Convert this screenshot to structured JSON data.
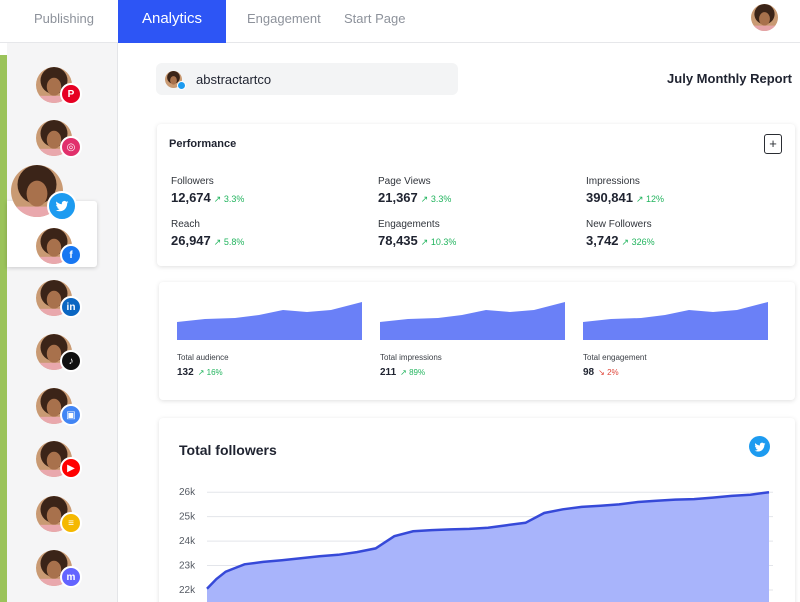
{
  "nav": {
    "tabs": [
      {
        "label": "Publishing"
      },
      {
        "label": "Analytics",
        "active": true
      },
      {
        "label": "Engagement"
      },
      {
        "label": "Start Page"
      }
    ]
  },
  "sidebar": {
    "accounts": [
      {
        "network": "pinterest",
        "icon": "pinterest-icon",
        "color": "#e60023"
      },
      {
        "network": "instagram",
        "icon": "instagram-icon",
        "color": "#e1306c"
      },
      {
        "network": "twitter",
        "icon": "twitter-icon",
        "color": "#1d9bf0",
        "selected": true
      },
      {
        "network": "facebook",
        "icon": "facebook-icon",
        "color": "#1877f2"
      },
      {
        "network": "linkedin",
        "icon": "linkedin-icon",
        "color": "#0a66c2"
      },
      {
        "network": "tiktok",
        "icon": "tiktok-icon",
        "color": "#111111"
      },
      {
        "network": "google-business",
        "icon": "google-business-icon",
        "color": "#4285f4"
      },
      {
        "network": "youtube",
        "icon": "youtube-icon",
        "color": "#ff0000"
      },
      {
        "network": "start-page",
        "icon": "start-page-icon",
        "color": "#f5b800"
      },
      {
        "network": "mastodon",
        "icon": "mastodon-icon",
        "color": "#6364ff"
      }
    ]
  },
  "account": {
    "name": "abstractartco"
  },
  "report": {
    "title": "July Monthly Report"
  },
  "performance": {
    "title": "Performance",
    "add_label": "+",
    "metrics": [
      {
        "label": "Followers",
        "value": "12,674",
        "change": "3.3%"
      },
      {
        "label": "Page Views",
        "value": "21,367",
        "change": "3.3%"
      },
      {
        "label": "Impressions",
        "value": "390,841",
        "change": "12%"
      },
      {
        "label": "Reach",
        "value": "26,947",
        "change": "5.8%"
      },
      {
        "label": "Engagements",
        "value": "78,435",
        "change": "10.3%"
      },
      {
        "label": "New Followers",
        "value": "3,742",
        "change": "326%"
      }
    ]
  },
  "mini_charts": [
    {
      "label": "Total audience",
      "value": "132",
      "change": "16%",
      "trend": "up"
    },
    {
      "label": "Total impressions",
      "value": "211",
      "change": "89%",
      "trend": "up"
    },
    {
      "label": "Total engagement",
      "value": "98",
      "change": "2%",
      "trend": "down"
    }
  ],
  "colors": {
    "accent": "#2d55f5",
    "area_fill": "#a8b4fb",
    "area_line": "#3649d8",
    "mini_fill": "#6a80f7",
    "positive": "#22b45e",
    "negative": "#e0463a"
  },
  "total_followers": {
    "title": "Total followers",
    "chart_data": {
      "type": "area",
      "title": "Total followers",
      "y_ticks": [
        "26k",
        "25k",
        "24k",
        "23k",
        "22k"
      ],
      "ylim": [
        22000,
        26500
      ],
      "x": [
        0,
        0.5,
        1,
        1.5,
        2,
        3,
        4,
        5,
        6,
        7,
        8,
        9,
        10,
        11,
        12,
        13,
        14,
        15,
        16,
        17,
        18,
        19,
        20,
        21,
        22,
        23,
        24,
        25,
        26,
        27,
        28,
        29,
        30
      ],
      "values": [
        22050,
        22450,
        22750,
        22900,
        23050,
        23150,
        23220,
        23300,
        23380,
        23440,
        23550,
        23700,
        24200,
        24400,
        24450,
        24480,
        24500,
        24550,
        24650,
        24750,
        25150,
        25300,
        25400,
        25450,
        25500,
        25600,
        25650,
        25700,
        25720,
        25780,
        25850,
        25900,
        26000
      ]
    }
  }
}
